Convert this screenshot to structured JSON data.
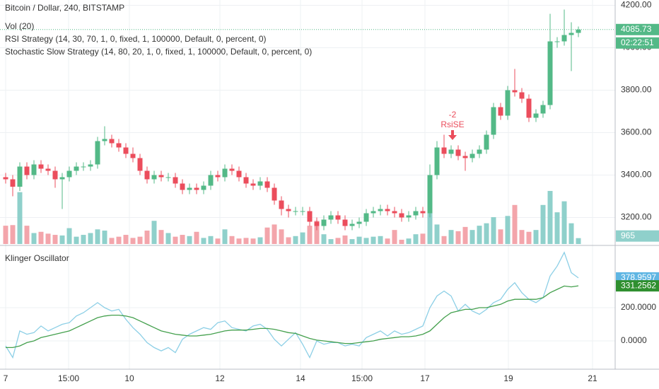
{
  "chart_data": {
    "type": "candlestick",
    "title": "Bitcoin / Dollar, 240, BITSTAMP",
    "legend": [
      "Vol (20)",
      "RSI Strategy (14, 30, 70, 1, 0, fixed, 1, 100000, Default, 0, percent, 0)",
      "Stochastic Slow Strategy (14, 80, 20, 1, 0, fixed, 1, 100000, Default, 0, percent, 0)"
    ],
    "up_color": "#53b987",
    "down_color": "#eb4d5c",
    "volume_up_color": "#8fd0cb",
    "volume_down_color": "#f3a5ab",
    "open": [
      3390,
      3380,
      3345,
      3440,
      3400,
      3450,
      3430,
      3420,
      3380,
      3390,
      3420,
      3440,
      3440,
      3450,
      3560,
      3570,
      3550,
      3530,
      3500,
      3480,
      3420,
      3380,
      3400,
      3390,
      3390,
      3360,
      3330,
      3340,
      3330,
      3350,
      3400,
      3390,
      3430,
      3420,
      3390,
      3360,
      3350,
      3370,
      3340,
      3280,
      3240,
      3230,
      3230,
      3230,
      3180,
      3160,
      3190,
      3210,
      3190,
      3160,
      3170,
      3180,
      3220,
      3230,
      3240,
      3230,
      3220,
      3200,
      3210,
      3230,
      3220,
      3400,
      3530,
      3500,
      3520,
      3490,
      3480,
      3500,
      3520,
      3590,
      3720,
      3680,
      3800,
      3790,
      3760,
      3670,
      3690,
      3730,
      4030,
      4030,
      4060,
      4070
    ],
    "high": [
      3410,
      3400,
      3460,
      3460,
      3470,
      3470,
      3450,
      3440,
      3410,
      3440,
      3460,
      3460,
      3470,
      3580,
      3630,
      3590,
      3570,
      3550,
      3530,
      3500,
      3440,
      3420,
      3420,
      3410,
      3410,
      3380,
      3360,
      3360,
      3370,
      3420,
      3420,
      3450,
      3450,
      3440,
      3410,
      3380,
      3390,
      3390,
      3360,
      3300,
      3260,
      3250,
      3250,
      3250,
      3200,
      3210,
      3230,
      3230,
      3210,
      3190,
      3200,
      3240,
      3250,
      3260,
      3260,
      3250,
      3240,
      3230,
      3250,
      3250,
      3450,
      3560,
      3590,
      3540,
      3540,
      3510,
      3520,
      3540,
      3610,
      3740,
      3740,
      3820,
      3900,
      3810,
      3780,
      3710,
      3750,
      4160,
      4050,
      4180,
      4120,
      4100
    ],
    "low": [
      3360,
      3300,
      3325,
      3380,
      3380,
      3410,
      3400,
      3340,
      3240,
      3370,
      3400,
      3420,
      3420,
      3430,
      3540,
      3530,
      3510,
      3480,
      3460,
      3400,
      3360,
      3360,
      3370,
      3370,
      3340,
      3310,
      3310,
      3310,
      3310,
      3330,
      3370,
      3370,
      3400,
      3370,
      3340,
      3330,
      3330,
      3320,
      3260,
      3210,
      3200,
      3210,
      3210,
      3160,
      3140,
      3140,
      3170,
      3170,
      3140,
      3140,
      3150,
      3160,
      3200,
      3210,
      3210,
      3200,
      3180,
      3180,
      3190,
      3200,
      3200,
      3380,
      3480,
      3480,
      3470,
      3420,
      3460,
      3480,
      3500,
      3570,
      3660,
      3660,
      3770,
      3740,
      3650,
      3650,
      3670,
      3710,
      4000,
      4010,
      3890,
      4050
    ],
    "close": [
      3380,
      3345,
      3440,
      3400,
      3450,
      3430,
      3420,
      3380,
      3390,
      3420,
      3440,
      3440,
      3450,
      3560,
      3570,
      3550,
      3530,
      3500,
      3480,
      3420,
      3380,
      3400,
      3390,
      3390,
      3360,
      3330,
      3340,
      3330,
      3350,
      3400,
      3390,
      3430,
      3420,
      3390,
      3360,
      3350,
      3370,
      3340,
      3280,
      3240,
      3230,
      3230,
      3230,
      3180,
      3160,
      3190,
      3210,
      3190,
      3160,
      3170,
      3180,
      3220,
      3230,
      3240,
      3230,
      3220,
      3200,
      3210,
      3230,
      3220,
      3400,
      3530,
      3500,
      3520,
      3490,
      3480,
      3500,
      3520,
      3590,
      3720,
      3680,
      3800,
      3790,
      3760,
      3670,
      3690,
      3730,
      4030,
      4030,
      4060,
      4070,
      4085.73
    ],
    "volume": [
      3000,
      3100,
      8500,
      3000,
      1800,
      2000,
      1700,
      1500,
      1400,
      2600,
      1200,
      1500,
      1800,
      2400,
      2200,
      1000,
      1200,
      1500,
      1000,
      1200,
      2200,
      3800,
      2300,
      1800,
      1200,
      1500,
      1300,
      2000,
      1000,
      1300,
      900,
      2400,
      1300,
      900,
      1000,
      900,
      1100,
      2700,
      3200,
      2400,
      1100,
      1300,
      1900,
      3000,
      3800,
      1600,
      800,
      1000,
      1400,
      800,
      1200,
      1000,
      1200,
      1300,
      900,
      2300,
      700,
      900,
      1600,
      1700,
      5500,
      3200,
      1300,
      2300,
      2100,
      2800,
      2300,
      3000,
      3400,
      4400,
      2400,
      4600,
      6400,
      2300,
      2000,
      2300,
      6400,
      8700,
      5200,
      7000,
      3400,
      965
    ],
    "volume_ylim": [
      0,
      40000
    ],
    "xlim": [
      -0.8,
      86.2
    ],
    "xticks": [
      {
        "value": 0,
        "label": "7"
      },
      {
        "value": 8.9,
        "label": "15:00"
      },
      {
        "value": 17.5,
        "label": "10"
      },
      {
        "value": 30.3,
        "label": "12"
      },
      {
        "value": 41.7,
        "label": "14"
      },
      {
        "value": 50.4,
        "label": "15:00"
      },
      {
        "value": 59.3,
        "label": "17"
      },
      {
        "value": 71.1,
        "label": "19"
      },
      {
        "value": 83,
        "label": "21"
      }
    ],
    "ylim": [
      3075,
      4225
    ],
    "yticks": [
      {
        "value": 3200,
        "label": "3200.00"
      },
      {
        "value": 3400,
        "label": "3400.00"
      },
      {
        "value": 3600,
        "label": "3600.00"
      },
      {
        "value": 3800,
        "label": "3800.00"
      },
      {
        "value": 4000,
        "label": "4000.00"
      },
      {
        "value": 4200,
        "label": "4200.00"
      }
    ],
    "countdown": "02:22:51",
    "annotations": [
      "-2",
      "RsiSE"
    ],
    "grid": true,
    "klinger": {
      "title": "Klinger Oscillator",
      "ylim": [
        -170,
        570
      ],
      "yticks": [
        {
          "value": 0,
          "label": "0.0000"
        },
        {
          "value": 200,
          "label": "200.0000"
        }
      ],
      "series": [
        {
          "color": "#8ccfe6",
          "values": [
            -30,
            -100,
            60,
            40,
            50,
            90,
            60,
            80,
            100,
            110,
            150,
            170,
            200,
            230,
            200,
            180,
            190,
            130,
            80,
            40,
            -10,
            -40,
            -60,
            -40,
            -70,
            10,
            40,
            60,
            80,
            70,
            110,
            120,
            80,
            70,
            60,
            90,
            100,
            70,
            10,
            -30,
            10,
            50,
            -20,
            -100,
            0,
            -20,
            -10,
            -10,
            -30,
            -20,
            -30,
            20,
            40,
            60,
            30,
            60,
            40,
            50,
            70,
            90,
            200,
            270,
            300,
            270,
            180,
            220,
            180,
            160,
            190,
            230,
            250,
            310,
            350,
            290,
            250,
            230,
            260,
            390,
            450,
            532,
            410,
            378.9597
          ]
        },
        {
          "color": "#44a04d",
          "values": [
            -40,
            -40,
            -30,
            -10,
            0,
            20,
            30,
            40,
            50,
            60,
            80,
            100,
            120,
            140,
            150,
            155,
            155,
            150,
            140,
            120,
            100,
            80,
            60,
            50,
            40,
            35,
            30,
            30,
            35,
            40,
            50,
            60,
            65,
            65,
            65,
            70,
            75,
            75,
            70,
            60,
            50,
            45,
            30,
            15,
            5,
            0,
            -5,
            -10,
            -15,
            -15,
            -10,
            -5,
            0,
            10,
            15,
            20,
            25,
            25,
            30,
            40,
            60,
            100,
            140,
            170,
            180,
            190,
            190,
            200,
            200,
            210,
            220,
            240,
            250,
            250,
            250,
            250,
            260,
            290,
            310,
            330,
            325,
            331.2562
          ]
        }
      ]
    }
  }
}
